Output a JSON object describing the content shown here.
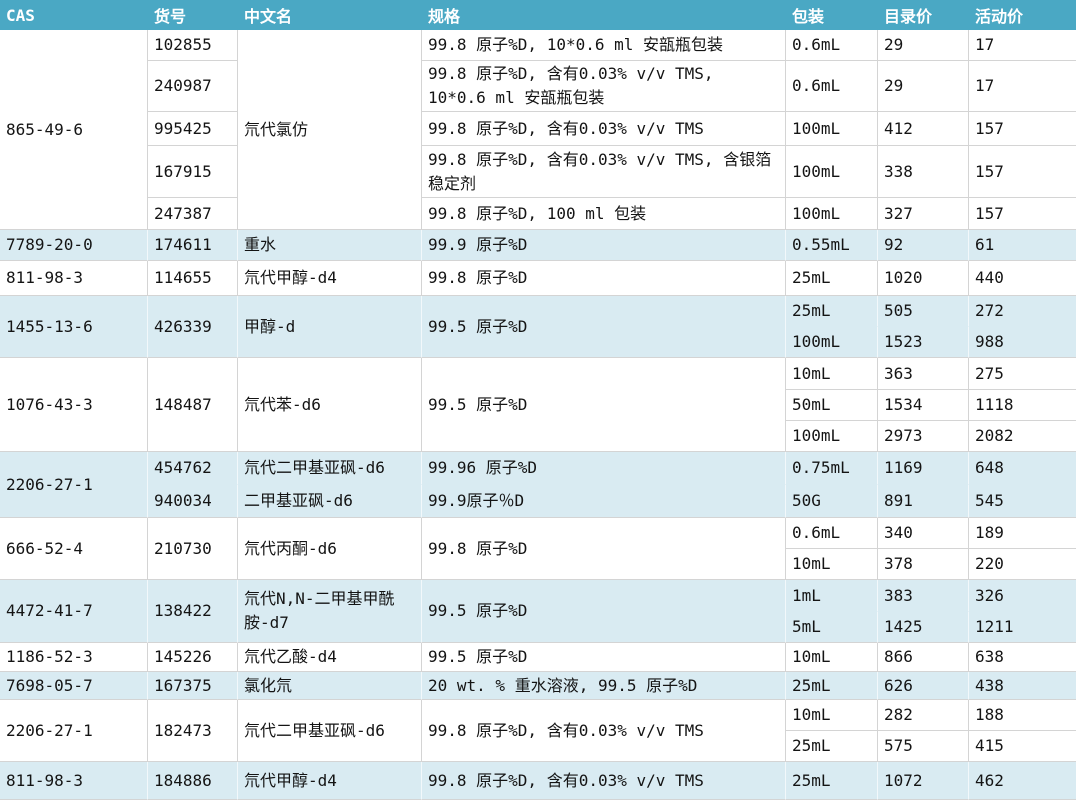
{
  "colors": {
    "header_bg": "#4aa8c4",
    "header_text": "#ffffff",
    "zebra_blue": "#d9ebf2",
    "grid": "#d4d4d4",
    "text": "#141414"
  },
  "header": {
    "columns": [
      {
        "key": "cas",
        "label": "CAS"
      },
      {
        "key": "catalog",
        "label": "货号"
      },
      {
        "key": "name",
        "label": "中文名"
      },
      {
        "key": "spec",
        "label": "规格"
      },
      {
        "key": "pack",
        "label": "包装"
      },
      {
        "key": "list_price",
        "label": "目录价"
      },
      {
        "key": "promo_price",
        "label": "活动价"
      }
    ]
  },
  "groups": [
    {
      "cas": "865-49-6",
      "name": "氘代氯仿",
      "items": [
        {
          "catalog": "102855",
          "spec": "99.8 原子%D, 10*0.6 ml 安瓿瓶包装",
          "pack": "0.6mL",
          "list_price": "29",
          "promo_price": "17"
        },
        {
          "catalog": "240987",
          "spec": "99.8 原子%D, 含有0.03% v/v TMS, 10*0.6 ml 安瓿瓶包装",
          "pack": "0.6mL",
          "list_price": "29",
          "promo_price": "17"
        },
        {
          "catalog": "995425",
          "spec": "99.8 原子%D, 含有0.03% v/v TMS",
          "pack": "100mL",
          "list_price": "412",
          "promo_price": "157"
        },
        {
          "catalog": "167915",
          "spec": "99.8 原子%D, 含有0.03% v/v TMS, 含银箔稳定剂",
          "pack": "100mL",
          "list_price": "338",
          "promo_price": "157"
        },
        {
          "catalog": "247387",
          "spec": "99.8 原子%D, 100 ml 包装",
          "pack": "100mL",
          "list_price": "327",
          "promo_price": "157"
        }
      ]
    },
    {
      "cas": "7789-20-0",
      "items": [
        {
          "catalog": "174611",
          "name": "重水",
          "spec": "99.9 原子%D",
          "pack": "0.55mL",
          "list_price": "92",
          "promo_price": "61"
        }
      ]
    },
    {
      "cas": "811-98-3",
      "items": [
        {
          "catalog": "114655",
          "name": "氘代甲醇-d4",
          "spec": "99.8 原子%D",
          "pack": "25mL",
          "list_price": "1020",
          "promo_price": "440"
        }
      ]
    },
    {
      "cas": "1455-13-6",
      "catalog": "426339",
      "name": "甲醇-d",
      "spec": "99.5 原子%D",
      "items": [
        {
          "pack": "25mL",
          "list_price": "505",
          "promo_price": "272"
        },
        {
          "pack": "100mL",
          "list_price": "1523",
          "promo_price": "988"
        }
      ]
    },
    {
      "cas": "1076-43-3",
      "catalog": "148487",
      "name": "氘代苯-d6",
      "spec": "99.5 原子%D",
      "items": [
        {
          "pack": "10mL",
          "list_price": "363",
          "promo_price": "275"
        },
        {
          "pack": "50mL",
          "list_price": "1534",
          "promo_price": "1118"
        },
        {
          "pack": "100mL",
          "list_price": "2973",
          "promo_price": "2082"
        }
      ]
    },
    {
      "cas": "2206-27-1",
      "items": [
        {
          "catalog": "454762",
          "name": "氘代二甲基亚砜-d6",
          "spec": "99.96 原子%D",
          "pack": "0.75mL",
          "list_price": "1169",
          "promo_price": "648"
        },
        {
          "catalog": "940034",
          "name": "二甲基亚砜-d6",
          "spec": "99.9原子％D",
          "pack": "50G",
          "list_price": "891",
          "promo_price": "545"
        }
      ]
    },
    {
      "cas": "666-52-4",
      "catalog": "210730",
      "name": "氘代丙酮-d6",
      "spec": "99.8 原子%D",
      "items": [
        {
          "pack": "0.6mL",
          "list_price": "340",
          "promo_price": "189"
        },
        {
          "pack": "10mL",
          "list_price": "378",
          "promo_price": "220"
        }
      ]
    },
    {
      "cas": "4472-41-7",
      "catalog": "138422",
      "name": "氘代N,N-二甲基甲酰胺-d7",
      "spec": "99.5 原子%D",
      "items": [
        {
          "pack": "1mL",
          "list_price": "383",
          "promo_price": "326"
        },
        {
          "pack": "5mL",
          "list_price": "1425",
          "promo_price": "1211"
        }
      ]
    },
    {
      "cas": "1186-52-3",
      "items": [
        {
          "catalog": "145226",
          "name": "氘代乙酸-d4",
          "spec": "99.5 原子%D",
          "pack": "10mL",
          "list_price": "866",
          "promo_price": "638"
        }
      ]
    },
    {
      "cas": "7698-05-7",
      "items": [
        {
          "catalog": "167375",
          "name": "氯化氘",
          "spec": "20 wt. % 重水溶液, 99.5 原子%D",
          "pack": "25mL",
          "list_price": "626",
          "promo_price": "438"
        }
      ]
    },
    {
      "cas": "2206-27-1",
      "catalog": "182473",
      "name": "氘代二甲基亚砜-d6",
      "spec": "99.8 原子%D, 含有0.03% v/v TMS",
      "items": [
        {
          "pack": "10mL",
          "list_price": "282",
          "promo_price": "188"
        },
        {
          "pack": "25mL",
          "list_price": "575",
          "promo_price": "415"
        }
      ]
    },
    {
      "cas": "811-98-3",
      "items": [
        {
          "catalog": "184886",
          "name": "氘代甲醇-d4",
          "spec": "99.8 原子%D, 含有0.03% v/v TMS",
          "pack": "25mL",
          "list_price": "1072",
          "promo_price": "462"
        }
      ]
    }
  ]
}
